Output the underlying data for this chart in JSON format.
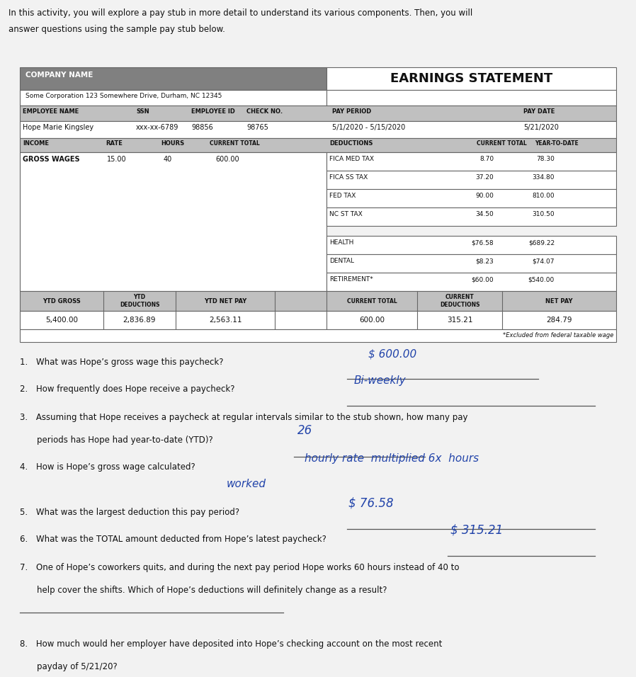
{
  "intro_line1": "In this activity, you will explore a pay stub in more detail to understand its various components. Then, you will",
  "intro_line2": "answer questions using the sample pay stub below.",
  "company_name": "COMPANY NAME",
  "company_address": "Some Corporation 123 Somewhere Drive, Durham, NC 12345",
  "earnings_statement": "EARNINGS STATEMENT",
  "employee_name_label": "EMPLOYEE NAME",
  "ssn_label": "SSN",
  "employee_id_label": "EMPLOYEE ID",
  "check_no_label": "CHECK NO.",
  "pay_period_label": "PAY PERIOD",
  "pay_date_label": "PAY DATE",
  "employee_name": "Hope Marie Kingsley",
  "ssn": "xxx-xx-6789",
  "employee_id": "98856",
  "check_no": "98765",
  "pay_period": "5/1/2020 - 5/15/2020",
  "pay_date": "5/21/2020",
  "income_label": "INCOME",
  "rate_label": "RATE",
  "hours_label": "HOURS",
  "current_total_label": "CURRENT TOTAL",
  "deductions_label": "DEDUCTIONS",
  "current_total_label2": "CURRENT TOTAL",
  "year_to_date_label": "YEAR-TO-DATE",
  "gross_wages_label": "GROSS WAGES",
  "rate_value": "15.00",
  "hours_value": "40",
  "current_total_value": "600.00",
  "deductions": [
    {
      "name": "FICA MED TAX",
      "current": "8.70",
      "ytd": "78.30"
    },
    {
      "name": "FICA SS TAX",
      "current": "37.20",
      "ytd": "334.80"
    },
    {
      "name": "FED TAX",
      "current": "90.00",
      "ytd": "810.00"
    },
    {
      "name": "NC ST TAX",
      "current": "34.50",
      "ytd": "310.50"
    },
    {
      "name": "HEALTH",
      "current": "$76.58",
      "ytd": "$689.22"
    },
    {
      "name": "DENTAL",
      "current": "$8.23",
      "ytd": "$74.07"
    },
    {
      "name": "RETIREMENT*",
      "current": "$60.00",
      "ytd": "$540.00"
    }
  ],
  "ytd_gross_label": "YTD GROSS",
  "ytd_deductions_label": "YTD\nDEDUCTIONS",
  "ytd_net_pay_label": "YTD NET PAY",
  "current_total_bottom_label": "CURRENT TOTAL",
  "current_deductions_label": "CURRENT\nDEDUCTIONS",
  "net_pay_label": "NET PAY",
  "ytd_gross_value": "5,400.00",
  "ytd_deductions_value": "2,836.89",
  "ytd_net_pay_value": "2,563.11",
  "current_total_bottom_value": "600.00",
  "current_deductions_value": "315.21",
  "net_pay_value": "284.79",
  "footnote": "*Excluded from federal taxable wage",
  "header_bg": "#808080",
  "subheader_bg": "#c0c0c0",
  "white_bg": "#ffffff",
  "border_color": "#666666",
  "page_bg": "#f2f2f2"
}
